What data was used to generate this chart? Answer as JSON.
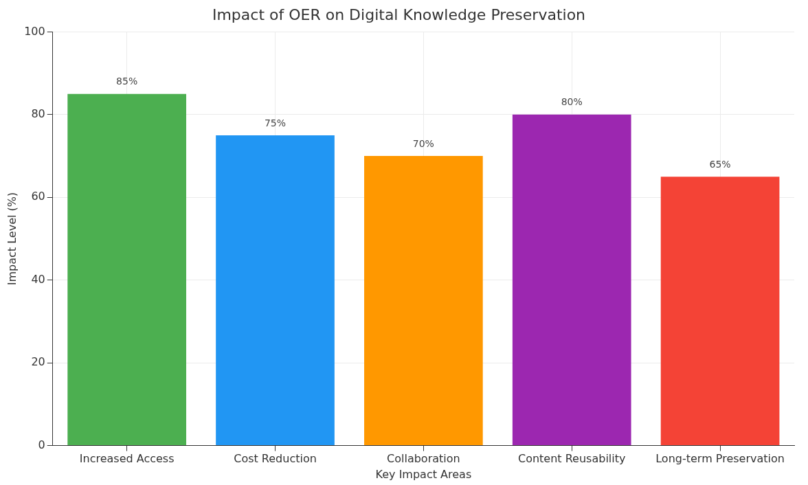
{
  "chart_data": {
    "type": "bar",
    "title": "Impact of OER on Digital Knowledge Preservation",
    "xlabel": "Key Impact Areas",
    "ylabel": "Impact Level (%)",
    "categories": [
      "Increased Access",
      "Cost Reduction",
      "Collaboration",
      "Content Reusability",
      "Long-term Preservation"
    ],
    "values": [
      85,
      75,
      70,
      80,
      65
    ],
    "colors": [
      "#4caf50",
      "#2196f3",
      "#ff9800",
      "#9c27b0",
      "#f44336"
    ],
    "value_labels": [
      "85%",
      "75%",
      "70%",
      "80%",
      "65%"
    ],
    "ylim": [
      0,
      100
    ],
    "yticks": [
      0,
      20,
      40,
      60,
      80,
      100
    ],
    "grid": true,
    "legend": false
  }
}
